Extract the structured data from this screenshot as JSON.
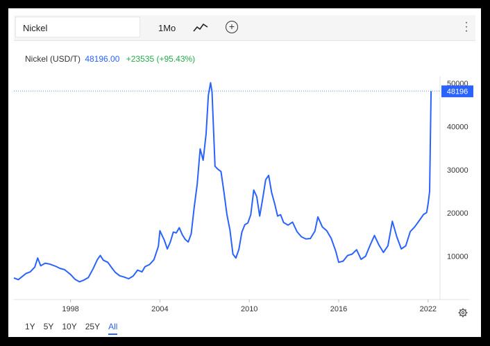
{
  "toolbar": {
    "symbol": "Nickel",
    "interval": "1Mo",
    "chart_type_icon": "line-chart-icon",
    "add_icon": "plus-circle-icon",
    "menu_icon": "kebab-menu-icon"
  },
  "legend": {
    "name": "Nickel (USD/T)",
    "price": "48196.00",
    "change": "+23535 (+95.43%)"
  },
  "ranges": [
    "1Y",
    "5Y",
    "10Y",
    "25Y",
    "All"
  ],
  "active_range": "All",
  "settings_icon": "gear-icon",
  "colors": {
    "line": "#2962ff",
    "positive": "#22ab4a"
  },
  "chart_data": {
    "type": "line",
    "x_ticks": [
      "1998",
      "2004",
      "2010",
      "2016",
      "2022"
    ],
    "y_ticks": [
      "10000",
      "20000",
      "30000",
      "40000",
      "50000"
    ],
    "ylim": [
      0,
      50000
    ],
    "xlim": [
      1994.2,
      2022.8
    ],
    "last_value_label": "48196",
    "series": [
      {
        "x": [
          1994.2,
          1994.5,
          1995.0,
          1995.3,
          1995.6,
          1995.8,
          1996.0,
          1996.3,
          1996.6,
          1997.0,
          1997.3,
          1997.6,
          1998.0,
          1998.3,
          1998.6,
          1998.9,
          1999.2,
          1999.5,
          1999.8,
          2000.0,
          2000.2,
          2000.5,
          2000.8,
          2001.0,
          2001.3,
          2001.6,
          2001.9,
          2002.2,
          2002.5,
          2002.8,
          2003.0,
          2003.3,
          2003.6,
          2003.9,
          2004.0,
          2004.3,
          2004.5,
          2004.7,
          2004.9,
          2005.1,
          2005.3,
          2005.5,
          2005.7,
          2005.9,
          2006.1,
          2006.3,
          2006.5,
          2006.7,
          2006.9,
          2007.1,
          2007.25,
          2007.4,
          2007.5,
          2007.7,
          2007.9,
          2008.1,
          2008.3,
          2008.5,
          2008.7,
          2008.9,
          2009.1,
          2009.3,
          2009.5,
          2009.7,
          2009.9,
          2010.1,
          2010.3,
          2010.5,
          2010.7,
          2010.9,
          2011.1,
          2011.3,
          2011.5,
          2011.7,
          2011.9,
          2012.1,
          2012.3,
          2012.6,
          2012.9,
          2013.2,
          2013.5,
          2013.8,
          2014.1,
          2014.4,
          2014.6,
          2014.9,
          2015.2,
          2015.5,
          2015.8,
          2016.0,
          2016.3,
          2016.6,
          2016.9,
          2017.2,
          2017.5,
          2017.8,
          2018.1,
          2018.4,
          2018.7,
          2019.0,
          2019.3,
          2019.6,
          2019.9,
          2020.2,
          2020.5,
          2020.8,
          2021.1,
          2021.4,
          2021.7,
          2021.9,
          2022.0,
          2022.1,
          2022.2
        ],
        "values": [
          5000,
          4600,
          6000,
          6400,
          7500,
          9600,
          7800,
          8400,
          8200,
          7700,
          7200,
          6900,
          5800,
          4700,
          4100,
          4500,
          5100,
          7000,
          9200,
          10200,
          9100,
          8600,
          7200,
          6300,
          5500,
          5200,
          4800,
          5400,
          6800,
          6400,
          7600,
          8100,
          9200,
          12300,
          15900,
          13700,
          11700,
          13300,
          15600,
          15400,
          16600,
          15000,
          13900,
          13300,
          15200,
          21300,
          26600,
          34800,
          32200,
          38200,
          47200,
          50100,
          48000,
          30800,
          30100,
          29600,
          24800,
          19600,
          16100,
          10500,
          9600,
          11600,
          15600,
          17300,
          17700,
          19600,
          25300,
          23800,
          19300,
          23300,
          27700,
          28700,
          24700,
          22200,
          19300,
          19600,
          17800,
          17200,
          17900,
          15700,
          14500,
          14000,
          14100,
          15800,
          19100,
          16800,
          15900,
          14100,
          11200,
          8600,
          8900,
          10200,
          10500,
          11500,
          9300,
          10000,
          12500,
          14800,
          12600,
          10900,
          12400,
          18100,
          14500,
          11700,
          12400,
          15700,
          16800,
          18200,
          19700,
          20100,
          22100,
          25000,
          48196
        ]
      }
    ]
  }
}
